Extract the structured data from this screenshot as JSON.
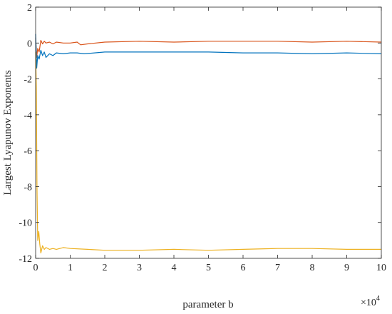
{
  "chart_data": {
    "type": "line",
    "title": "",
    "xlabel": "parameter b",
    "ylabel": "Largest Lyapunov Exponents",
    "x_exponent_label": "×10",
    "x_exponent_power": "4",
    "xlim": [
      0,
      100000
    ],
    "ylim": [
      -12,
      2
    ],
    "x_ticks": [
      0,
      10000,
      20000,
      30000,
      40000,
      50000,
      60000,
      70000,
      80000,
      90000,
      100000
    ],
    "x_tick_labels": [
      "0",
      "1",
      "2",
      "3",
      "4",
      "5",
      "6",
      "7",
      "8",
      "9",
      "10"
    ],
    "y_ticks": [
      2,
      0,
      -2,
      -4,
      -6,
      -8,
      -10,
      -12
    ],
    "y_tick_labels": [
      "2",
      "0",
      "-2",
      "-4",
      "-6",
      "-8",
      "-10",
      "-12"
    ],
    "grid": false,
    "legend": "none",
    "series": [
      {
        "color": "#D95319",
        "x": [
          0,
          300,
          600,
          1000,
          1500,
          2000,
          2500,
          3000,
          4000,
          5000,
          6000,
          8000,
          10000,
          12000,
          13000,
          15000,
          20000,
          30000,
          40000,
          50000,
          60000,
          70000,
          80000,
          90000,
          100000
        ],
        "y": [
          0.3,
          -0.8,
          -0.3,
          -0.5,
          0.15,
          -0.05,
          0.1,
          0.0,
          0.05,
          -0.05,
          0.05,
          0.0,
          0.0,
          0.05,
          -0.1,
          -0.05,
          0.05,
          0.1,
          0.05,
          0.1,
          0.1,
          0.1,
          0.05,
          0.1,
          0.05
        ]
      },
      {
        "color": "#0072BD",
        "x": [
          0,
          300,
          600,
          1000,
          1500,
          2000,
          2500,
          3000,
          4000,
          5000,
          6000,
          8000,
          10000,
          12000,
          14000,
          20000,
          30000,
          40000,
          50000,
          60000,
          70000,
          80000,
          90000,
          100000
        ],
        "y": [
          0.5,
          -1.4,
          -0.7,
          -0.9,
          -0.4,
          -0.7,
          -0.5,
          -0.8,
          -0.6,
          -0.7,
          -0.55,
          -0.6,
          -0.55,
          -0.55,
          -0.6,
          -0.5,
          -0.5,
          -0.5,
          -0.5,
          -0.55,
          -0.55,
          -0.6,
          -0.55,
          -0.6
        ]
      },
      {
        "color": "#EDB120",
        "x": [
          0,
          200,
          400,
          600,
          900,
          1200,
          1500,
          2000,
          2500,
          3000,
          4000,
          5000,
          6000,
          8000,
          10000,
          15000,
          20000,
          30000,
          40000,
          50000,
          60000,
          70000,
          80000,
          90000,
          100000
        ],
        "y": [
          -0.5,
          -2.5,
          -8,
          -11,
          -10.5,
          -11.2,
          -11.7,
          -11.3,
          -11.5,
          -11.4,
          -11.5,
          -11.45,
          -11.5,
          -11.4,
          -11.45,
          -11.5,
          -11.55,
          -11.55,
          -11.5,
          -11.55,
          -11.5,
          -11.45,
          -11.45,
          -11.5,
          -11.5
        ]
      }
    ]
  }
}
